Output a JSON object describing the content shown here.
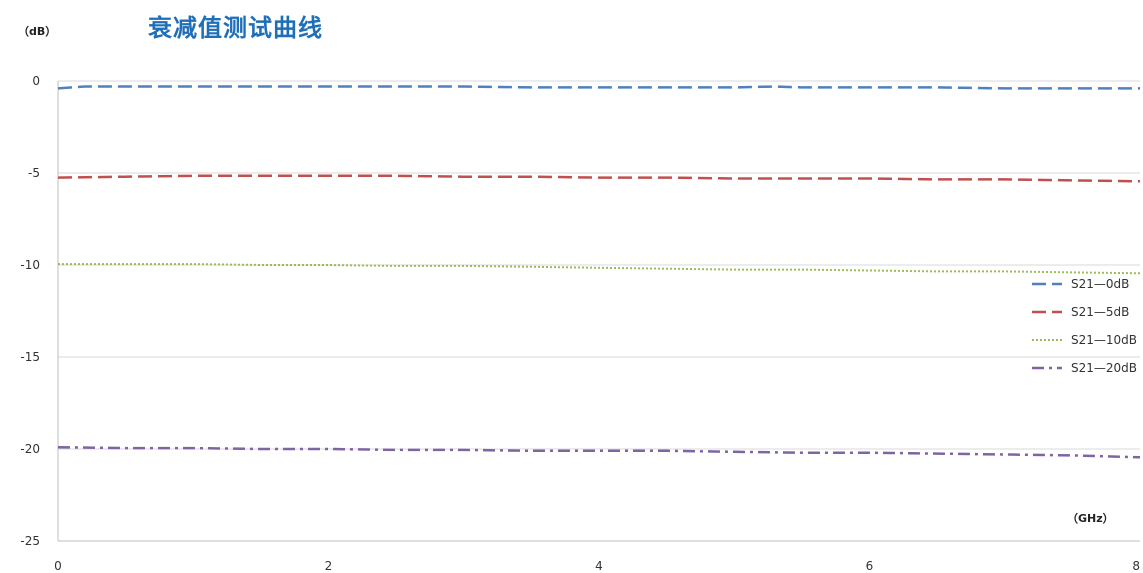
{
  "chart_data": {
    "type": "line",
    "title": "衰减值测试曲线",
    "ylabel": "（dB）",
    "xlabel": "（GHz）",
    "xlim": [
      0,
      8
    ],
    "ylim": [
      -25,
      0
    ],
    "xticks": [
      0,
      2,
      4,
      6,
      8
    ],
    "yticks": [
      0,
      -5,
      -10,
      -15,
      -20,
      -25
    ],
    "grid": "horizontal",
    "legend_position": "right",
    "series": [
      {
        "name": "S21—0dB",
        "color": "#4f81bd",
        "dash": "dashed",
        "x": [
          0,
          0.2,
          0.5,
          1,
          1.5,
          2,
          2.5,
          3,
          3.5,
          4,
          4.5,
          5,
          5.3,
          5.5,
          6,
          6.5,
          7,
          7.5,
          8
        ],
        "y": [
          -0.4,
          -0.3,
          -0.3,
          -0.3,
          -0.3,
          -0.3,
          -0.3,
          -0.3,
          -0.35,
          -0.35,
          -0.35,
          -0.35,
          -0.3,
          -0.35,
          -0.35,
          -0.35,
          -0.4,
          -0.4,
          -0.4
        ]
      },
      {
        "name": "S21—5dB",
        "color": "#c0504d",
        "dash": "dashed",
        "x": [
          0,
          0.5,
          1,
          1.5,
          2,
          2.5,
          3,
          3.5,
          4,
          4.5,
          5,
          5.5,
          6,
          6.5,
          7,
          7.5,
          8
        ],
        "y": [
          -5.25,
          -5.2,
          -5.15,
          -5.15,
          -5.15,
          -5.15,
          -5.2,
          -5.2,
          -5.25,
          -5.25,
          -5.3,
          -5.3,
          -5.3,
          -5.35,
          -5.35,
          -5.4,
          -5.45
        ]
      },
      {
        "name": "S21—10dB",
        "color": "#9bbb59",
        "dash": "dotted",
        "x": [
          0,
          0.5,
          1,
          1.5,
          2,
          2.5,
          3,
          3.5,
          4,
          4.5,
          5,
          5.5,
          6,
          6.5,
          7,
          7.5,
          8
        ],
        "y": [
          -9.95,
          -9.95,
          -9.95,
          -10.0,
          -10.0,
          -10.05,
          -10.05,
          -10.1,
          -10.15,
          -10.2,
          -10.25,
          -10.25,
          -10.3,
          -10.35,
          -10.35,
          -10.4,
          -10.45
        ]
      },
      {
        "name": "S21—20dB",
        "color": "#8064a2",
        "dash": "dashdot",
        "x": [
          0,
          0.5,
          1,
          1.5,
          2,
          2.5,
          3,
          3.5,
          4,
          4.5,
          5,
          5.5,
          6,
          6.5,
          7,
          7.5,
          8
        ],
        "y": [
          -19.9,
          -19.95,
          -19.95,
          -20.0,
          -20.0,
          -20.05,
          -20.05,
          -20.1,
          -20.1,
          -20.1,
          -20.15,
          -20.2,
          -20.2,
          -20.25,
          -20.3,
          -20.35,
          -20.45
        ]
      }
    ]
  }
}
